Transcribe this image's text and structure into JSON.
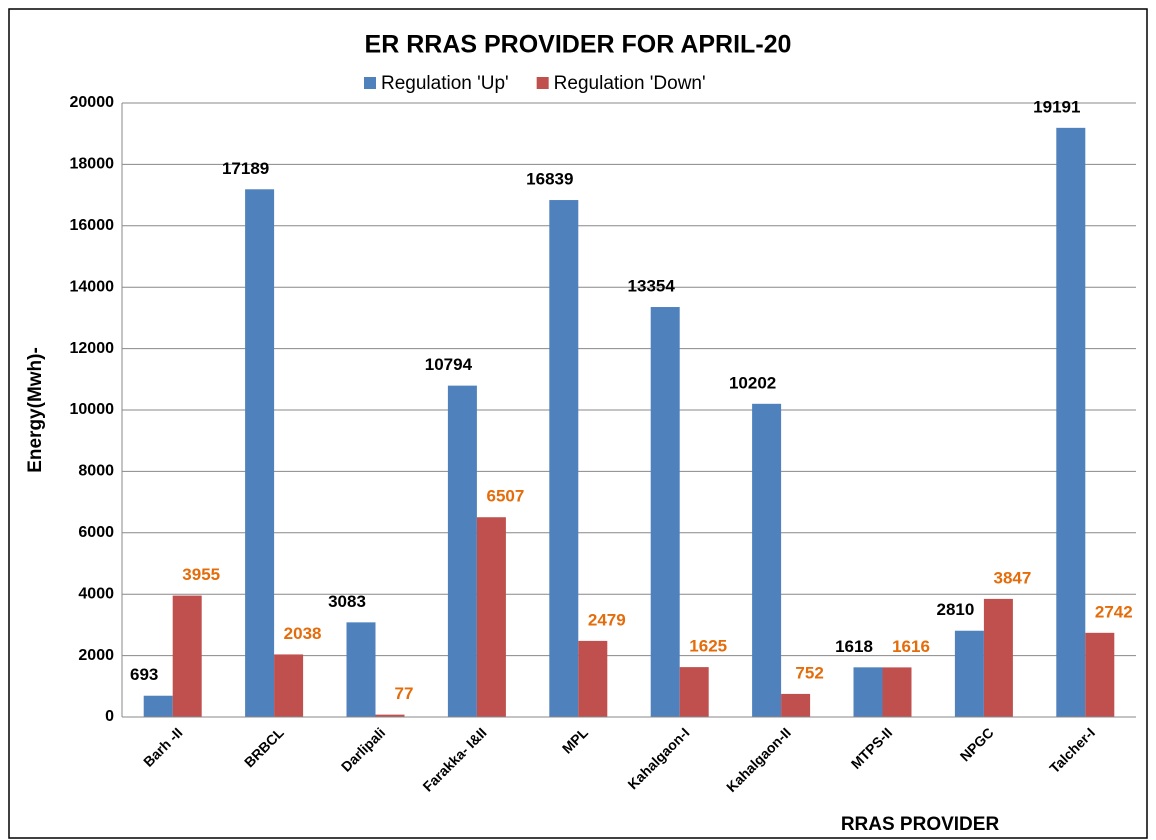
{
  "chart_data": {
    "type": "bar",
    "title": "ER RRAS PROVIDER FOR APRIL-20",
    "x_label": "RRAS PROVIDER",
    "y_label": "Energy(Mwh)-",
    "categories": [
      "Barh -II",
      "BRBCL",
      "Darlipali",
      "Farakka- I&II",
      "MPL",
      "Kahalgaon-I",
      "Kahalgaon-II",
      "MTPS-II",
      "NPGC",
      "Talcher-I"
    ],
    "series": [
      {
        "name": "Regulation 'Up'",
        "color": "#4f81bd",
        "label_color": "#000000",
        "values": [
          693,
          17189,
          3083,
          10794,
          16839,
          13354,
          10202,
          1618,
          2810,
          19191
        ]
      },
      {
        "name": "Regulation 'Down'",
        "color": "#c0504d",
        "label_color": "#e46c0a",
        "values": [
          3955,
          2038,
          77,
          6507,
          2479,
          1625,
          752,
          1616,
          3847,
          2742
        ]
      }
    ],
    "ylim": [
      0,
      20000
    ],
    "yticks": [
      0,
      2000,
      4000,
      6000,
      8000,
      10000,
      12000,
      14000,
      16000,
      18000,
      20000
    ],
    "grid": true,
    "legend": "top"
  }
}
